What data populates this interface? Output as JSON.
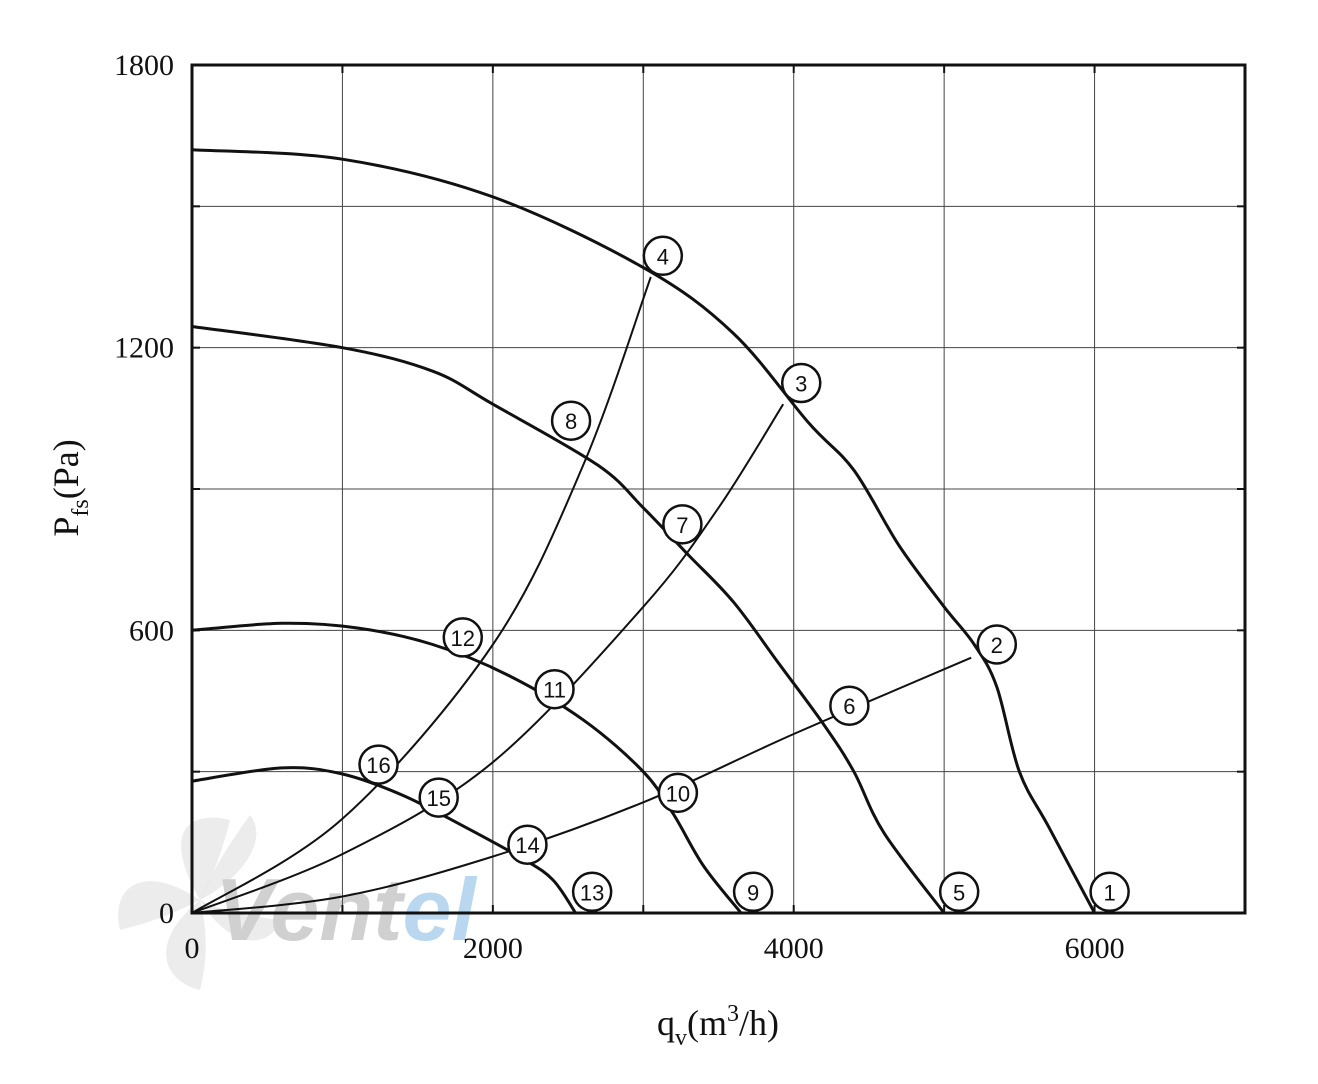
{
  "chart_data": {
    "type": "line",
    "title": "",
    "xlabel": "q",
    "xlabel_sub": "v",
    "xlabel_unit": "(m",
    "xlabel_sup": "3",
    "xlabel_tail": "/h)",
    "ylabel": "P",
    "ylabel_sub": "fs",
    "ylabel_unit": "(Pa)",
    "xlim": [
      0,
      7000
    ],
    "ylim": [
      0,
      1800
    ],
    "x_ticks": [
      0,
      2000,
      4000,
      6000
    ],
    "x_tick_labels": [
      "0",
      "2000",
      "4000",
      "6000"
    ],
    "y_ticks": [
      0,
      600,
      1200,
      1800
    ],
    "y_tick_labels": [
      "0",
      "600",
      "1200",
      "1800"
    ],
    "x_grid": [
      0,
      1000,
      2000,
      3000,
      4000,
      5000,
      6000,
      7000
    ],
    "y_grid": [
      0,
      300,
      600,
      900,
      1200,
      1500,
      1800
    ],
    "grid": true,
    "fan_curves": [
      {
        "start_label": "1",
        "points": [
          [
            0,
            1620
          ],
          [
            1000,
            1600
          ],
          [
            2000,
            1520
          ],
          [
            3000,
            1370
          ],
          [
            3600,
            1230
          ],
          [
            4100,
            1040
          ],
          [
            4400,
            940
          ],
          [
            4700,
            780
          ],
          [
            5000,
            650
          ],
          [
            5200,
            570
          ],
          [
            5350,
            480
          ],
          [
            5500,
            300
          ],
          [
            5700,
            180
          ],
          [
            6000,
            0
          ]
        ]
      },
      {
        "start_label": "5",
        "points": [
          [
            0,
            1245
          ],
          [
            1000,
            1200
          ],
          [
            1600,
            1150
          ],
          [
            2000,
            1080
          ],
          [
            2700,
            950
          ],
          [
            3000,
            860
          ],
          [
            3300,
            760
          ],
          [
            3600,
            660
          ],
          [
            3900,
            530
          ],
          [
            4200,
            400
          ],
          [
            4400,
            300
          ],
          [
            4600,
            170
          ],
          [
            5000,
            0
          ]
        ]
      },
      {
        "start_label": "9",
        "points": [
          [
            0,
            600
          ],
          [
            600,
            615
          ],
          [
            1100,
            605
          ],
          [
            1600,
            570
          ],
          [
            2100,
            505
          ],
          [
            2600,
            410
          ],
          [
            3000,
            300
          ],
          [
            3200,
            210
          ],
          [
            3400,
            100
          ],
          [
            3650,
            0
          ]
        ]
      },
      {
        "start_label": "13",
        "points": [
          [
            0,
            280
          ],
          [
            600,
            308
          ],
          [
            1000,
            295
          ],
          [
            1400,
            250
          ],
          [
            1800,
            185
          ],
          [
            2200,
            115
          ],
          [
            2400,
            70
          ],
          [
            2550,
            0
          ]
        ]
      }
    ],
    "system_curves": [
      {
        "label": "2",
        "points": [
          [
            0,
            0
          ],
          [
            1000,
            35
          ],
          [
            2000,
            120
          ],
          [
            3000,
            235
          ],
          [
            4000,
            380
          ],
          [
            5180,
            542
          ]
        ]
      },
      {
        "label": "3",
        "points": [
          [
            0,
            0
          ],
          [
            1000,
            125
          ],
          [
            2000,
            320
          ],
          [
            3000,
            650
          ],
          [
            3500,
            860
          ],
          [
            3930,
            1080
          ]
        ]
      },
      {
        "label": "4",
        "points": [
          [
            0,
            0
          ],
          [
            1000,
            200
          ],
          [
            2000,
            570
          ],
          [
            2600,
            950
          ],
          [
            3050,
            1350
          ]
        ]
      }
    ],
    "markers": [
      {
        "label": "1",
        "x": 6100,
        "y": 45
      },
      {
        "label": "2",
        "x": 5350,
        "y": 570
      },
      {
        "label": "3",
        "x": 4050,
        "y": 1125
      },
      {
        "label": "4",
        "x": 3130,
        "y": 1395
      },
      {
        "label": "5",
        "x": 5100,
        "y": 45
      },
      {
        "label": "6",
        "x": 4370,
        "y": 440
      },
      {
        "label": "7",
        "x": 3260,
        "y": 825
      },
      {
        "label": "8",
        "x": 2520,
        "y": 1045
      },
      {
        "label": "9",
        "x": 3730,
        "y": 45
      },
      {
        "label": "10",
        "x": 3230,
        "y": 255
      },
      {
        "label": "11",
        "x": 2410,
        "y": 475
      },
      {
        "label": "12",
        "x": 1800,
        "y": 585
      },
      {
        "label": "13",
        "x": 2660,
        "y": 45
      },
      {
        "label": "14",
        "x": 2230,
        "y": 145
      },
      {
        "label": "15",
        "x": 1640,
        "y": 245
      },
      {
        "label": "16",
        "x": 1240,
        "y": 315
      }
    ]
  },
  "watermark": {
    "text_gray": "Vent",
    "text_blue": "el",
    "colors": {
      "gray": "#d0d0d0",
      "blue": "#b9d8f0"
    }
  }
}
